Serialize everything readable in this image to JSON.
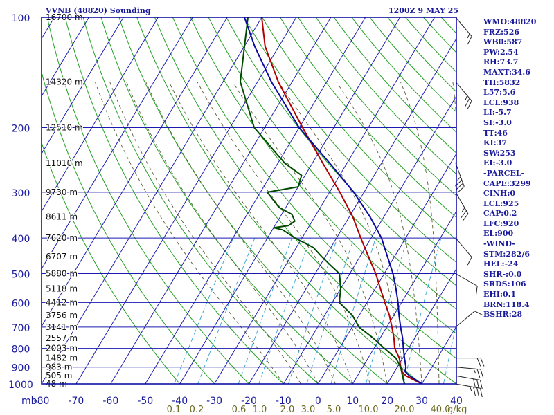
{
  "chart_data": {
    "type": "line",
    "title": "VVNB (48820) Sounding",
    "time": "1200Z  9 MAY 25",
    "y_unit_label": "mb",
    "mixing_ratio_unit": "g/kg",
    "ylim_mb": [
      1000,
      100
    ],
    "xlim_c": [
      -80,
      40
    ],
    "pressure_levels": [
      100,
      200,
      300,
      400,
      500,
      600,
      700,
      800,
      900,
      1000
    ],
    "temperature_ticks": [
      -80,
      -70,
      -60,
      -50,
      -40,
      -30,
      -20,
      -10,
      0,
      10,
      20,
      30,
      40
    ],
    "mixing_ratio_ticks": [
      "0.1",
      "0.2",
      "0.6",
      "1.0",
      "2.0",
      "3.0",
      "5.0",
      "10.0",
      "20.0",
      "40.0"
    ],
    "height_labels": [
      {
        "p": 100,
        "h": "16700 m"
      },
      {
        "p": 150,
        "h": "14320 m"
      },
      {
        "p": 200,
        "h": "12510 m"
      },
      {
        "p": 250,
        "h": "11010 m"
      },
      {
        "p": 300,
        "h": "9730 m"
      },
      {
        "p": 350,
        "h": "8611 m"
      },
      {
        "p": 400,
        "h": "7620 m"
      },
      {
        "p": 450,
        "h": "6707 m"
      },
      {
        "p": 500,
        "h": "5880 m"
      },
      {
        "p": 550,
        "h": "5118 m"
      },
      {
        "p": 600,
        "h": "4412 m"
      },
      {
        "p": 650,
        "h": "3756 m"
      },
      {
        "p": 700,
        "h": "3141 m"
      },
      {
        "p": 750,
        "h": "2557 m"
      },
      {
        "p": 800,
        "h": "2003 m"
      },
      {
        "p": 850,
        "h": "1482 m"
      },
      {
        "p": 900,
        "h": "983 m"
      },
      {
        "p": 950,
        "h": "505 m"
      },
      {
        "p": 1000,
        "h": "48 m"
      }
    ],
    "series": [
      {
        "name": "Temperature",
        "color": "#b00000",
        "points": [
          [
            1000,
            30
          ],
          [
            975,
            27
          ],
          [
            950,
            24
          ],
          [
            925,
            22
          ],
          [
            900,
            21
          ],
          [
            850,
            19
          ],
          [
            800,
            16
          ],
          [
            750,
            14
          ],
          [
            700,
            11.5
          ],
          [
            650,
            8.7
          ],
          [
            600,
            5.2
          ],
          [
            550,
            1.5
          ],
          [
            500,
            -2.5
          ],
          [
            450,
            -7.5
          ],
          [
            400,
            -13
          ],
          [
            350,
            -19
          ],
          [
            300,
            -27
          ],
          [
            250,
            -37
          ],
          [
            200,
            -49
          ],
          [
            150,
            -64
          ],
          [
            120,
            -74
          ],
          [
            100,
            -80
          ]
        ]
      },
      {
        "name": "Dewpoint",
        "color": "#004a00",
        "points": [
          [
            1000,
            25
          ],
          [
            975,
            24
          ],
          [
            950,
            23
          ],
          [
            925,
            22
          ],
          [
            900,
            21
          ],
          [
            850,
            18
          ],
          [
            800,
            13
          ],
          [
            750,
            8
          ],
          [
            700,
            2
          ],
          [
            650,
            -2
          ],
          [
            600,
            -8
          ],
          [
            550,
            -10
          ],
          [
            500,
            -13
          ],
          [
            475,
            -17
          ],
          [
            450,
            -21
          ],
          [
            425,
            -25
          ],
          [
            400,
            -32
          ],
          [
            380,
            -37
          ],
          [
            375,
            -40
          ],
          [
            370,
            -36
          ],
          [
            360,
            -35
          ],
          [
            345,
            -37
          ],
          [
            330,
            -42
          ],
          [
            300,
            -48
          ],
          [
            290,
            -40
          ],
          [
            270,
            -41
          ],
          [
            250,
            -48
          ],
          [
            200,
            -63
          ],
          [
            150,
            -75
          ],
          [
            100,
            -84
          ]
        ]
      },
      {
        "name": "Parcel",
        "color": "#0a0aa0",
        "points": [
          [
            1000,
            30
          ],
          [
            950,
            25
          ],
          [
            925,
            23
          ],
          [
            900,
            22.5
          ],
          [
            850,
            20.5
          ],
          [
            800,
            18.5
          ],
          [
            750,
            16.5
          ],
          [
            700,
            14
          ],
          [
            650,
            11.5
          ],
          [
            600,
            9
          ],
          [
            550,
            6
          ],
          [
            500,
            2.5
          ],
          [
            450,
            -2
          ],
          [
            400,
            -7
          ],
          [
            350,
            -14
          ],
          [
            300,
            -23
          ],
          [
            250,
            -35
          ],
          [
            200,
            -50
          ],
          [
            150,
            -66
          ],
          [
            120,
            -77
          ],
          [
            100,
            -85
          ]
        ]
      }
    ],
    "wind_barbs": [
      {
        "p": 1000,
        "dir": 280,
        "spd": 35
      },
      {
        "p": 950,
        "dir": 280,
        "spd": 30
      },
      {
        "p": 900,
        "dir": 275,
        "spd": 25
      },
      {
        "p": 850,
        "dir": 270,
        "spd": 20
      },
      {
        "p": 700,
        "dir": 230,
        "spd": 10
      },
      {
        "p": 500,
        "dir": 300,
        "spd": 10
      },
      {
        "p": 400,
        "dir": 320,
        "spd": 10
      },
      {
        "p": 300,
        "dir": 330,
        "spd": 25
      },
      {
        "p": 250,
        "dir": 340,
        "spd": 35
      },
      {
        "p": 150,
        "dir": 320,
        "spd": 25
      },
      {
        "p": 100,
        "dir": 320,
        "spd": 15
      }
    ]
  },
  "indices": [
    "WMO:48820",
    "FRZ:526",
    "WB0:587",
    "PW:2.54",
    "RH:73.7",
    "MAXT:34.6",
    "TH:5832",
    "L57:5.6",
    "LCL:938",
    "LI:-5.7",
    "SI:-3.0",
    "TT:46",
    "KI:37",
    "SW:253",
    "EI:-3.0",
    "-PARCEL-",
    "CAPE:3299",
    "CINH:0",
    "LCL:925",
    "CAP:0.2",
    "LFC:920",
    "EL:900",
    "-WIND-",
    "STM:282/6",
    "HEL:-24",
    "SHR-:0.0",
    "SRDS:106",
    "EHI:0.1",
    "BRN:118.4",
    "BSHR:28"
  ],
  "colors": {
    "frame": "#0000a0",
    "isobar": "#1a1ab0",
    "isotherm": "#1a1ab0",
    "dry_adiabat": "#22a022",
    "moist_adiabat": "#5a5a3a",
    "mixing_ratio": "#33a4d0",
    "pressure_label": "#1a1aa0",
    "temperature_label": "#1a1aa0",
    "mixing_label": "#6a6a20",
    "wind_barb": "#222222"
  }
}
